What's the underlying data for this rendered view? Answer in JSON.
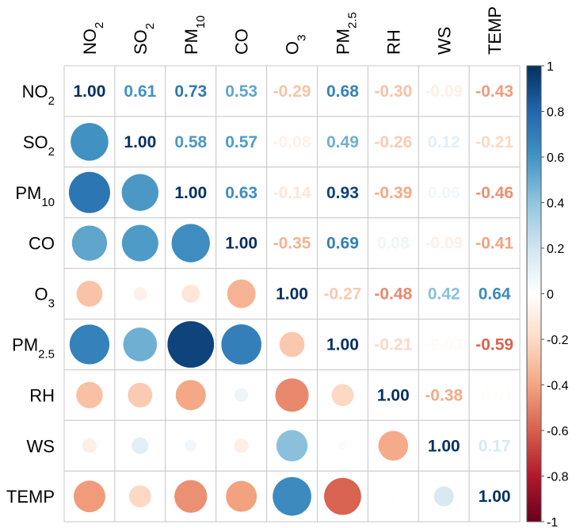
{
  "chart_data": {
    "type": "heatmap",
    "style": "mixed-correlogram",
    "lower": "circle",
    "upper": "number",
    "diagonal": "number",
    "variables": [
      {
        "name": "NO2",
        "base": "NO",
        "sub": "2"
      },
      {
        "name": "SO2",
        "base": "SO",
        "sub": "2"
      },
      {
        "name": "PM10",
        "base": "PM",
        "sub": "10"
      },
      {
        "name": "CO",
        "base": "CO",
        "sub": ""
      },
      {
        "name": "O3",
        "base": "O",
        "sub": "3"
      },
      {
        "name": "PM2.5",
        "base": "PM",
        "sub": "2.5"
      },
      {
        "name": "RH",
        "base": "RH",
        "sub": ""
      },
      {
        "name": "WS",
        "base": "WS",
        "sub": ""
      },
      {
        "name": "TEMP",
        "base": "TEMP",
        "sub": ""
      }
    ],
    "matrix": [
      [
        1.0,
        0.61,
        0.73,
        0.53,
        -0.29,
        0.68,
        -0.3,
        -0.09,
        -0.43
      ],
      [
        0.61,
        1.0,
        0.58,
        0.57,
        -0.08,
        0.49,
        -0.26,
        0.12,
        -0.21
      ],
      [
        0.73,
        0.58,
        1.0,
        0.63,
        -0.14,
        0.93,
        -0.39,
        0.06,
        -0.46
      ],
      [
        0.53,
        0.57,
        0.63,
        1.0,
        -0.35,
        0.69,
        0.08,
        -0.09,
        -0.41
      ],
      [
        -0.29,
        -0.08,
        -0.14,
        -0.35,
        1.0,
        -0.27,
        -0.48,
        0.42,
        0.64
      ],
      [
        0.68,
        0.49,
        0.93,
        0.69,
        -0.27,
        1.0,
        -0.21,
        -0.03,
        -0.59
      ],
      [
        -0.3,
        -0.26,
        -0.39,
        0.08,
        -0.48,
        -0.21,
        1.0,
        -0.38,
        -0.01
      ],
      [
        -0.09,
        0.12,
        0.06,
        -0.09,
        0.42,
        -0.03,
        -0.38,
        1.0,
        0.17
      ],
      [
        -0.43,
        -0.21,
        -0.46,
        -0.41,
        0.64,
        -0.59,
        -0.01,
        0.17,
        1.0
      ]
    ],
    "colorbar": {
      "range": [
        -1,
        1
      ],
      "ticks": [
        1,
        0.8,
        0.6,
        0.4,
        0.2,
        0,
        -0.2,
        -0.4,
        -0.6,
        -0.8,
        -1
      ],
      "tick_labels": [
        "1",
        "0.8",
        "0.6",
        "0.4",
        "0.2",
        "0",
        "-0.2",
        "-0.4",
        "-0.6",
        "-0.8",
        "-1"
      ],
      "palette": [
        "#67001F",
        "#B2182B",
        "#D6604D",
        "#F4A582",
        "#FDDBC7",
        "#FFFFFF",
        "#D1E5F0",
        "#92C5DE",
        "#4393C3",
        "#2166AC",
        "#053061"
      ]
    },
    "title": "",
    "xlabel": "",
    "ylabel": ""
  }
}
